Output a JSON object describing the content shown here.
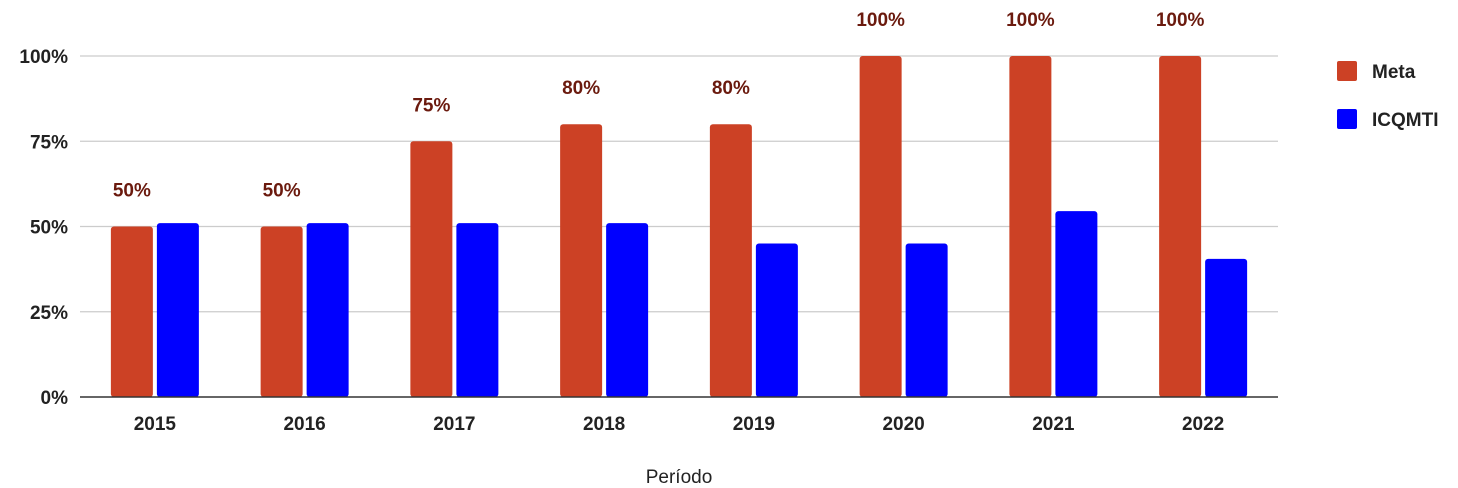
{
  "chart_data": {
    "type": "bar",
    "title": "",
    "xlabel": "Período",
    "ylabel": "",
    "categories": [
      "2015",
      "2016",
      "2017",
      "2018",
      "2019",
      "2020",
      "2021",
      "2022"
    ],
    "series": [
      {
        "name": "Meta",
        "values": [
          50,
          50,
          75,
          80,
          80,
          100,
          100,
          100
        ],
        "color": "#cc4125",
        "data_labels": [
          "50%",
          "50%",
          "75%",
          "80%",
          "80%",
          "100%",
          "100%",
          "100%"
        ]
      },
      {
        "name": "ICQMTI",
        "values": [
          51,
          51,
          51,
          51,
          45,
          45,
          54.5,
          40.5
        ],
        "color": "#0000ff"
      }
    ],
    "ylim": [
      0,
      100
    ],
    "yticks": [
      0,
      25,
      50,
      75,
      100
    ],
    "ytick_labels": [
      "0%",
      "25%",
      "50%",
      "75%",
      "100%"
    ],
    "grid": true,
    "legend_position": "right"
  }
}
